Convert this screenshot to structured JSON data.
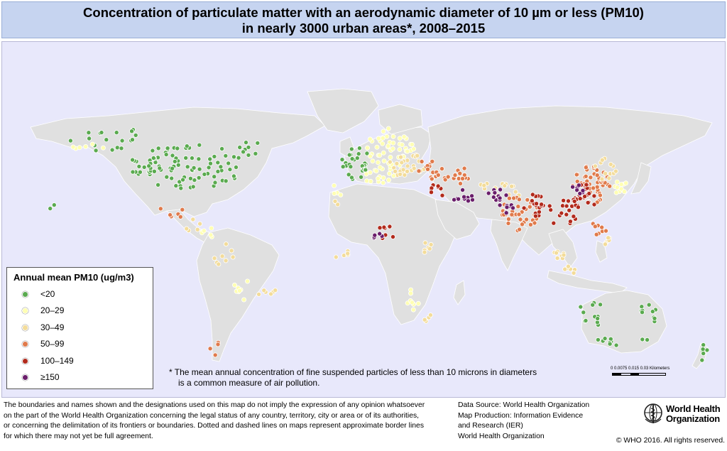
{
  "title": {
    "line1": "Concentration of particulate matter with an aerodynamic diameter of 10 µm or less (PM10)",
    "line2": "in nearly 3000 urban areas*, 2008–2015"
  },
  "legend": {
    "title": "Annual mean PM10 (ug/m3)",
    "classes": [
      {
        "label": "<20",
        "color": "#5aaa4f"
      },
      {
        "label": "20–29",
        "color": "#ffffb3"
      },
      {
        "label": "30–49",
        "color": "#f3dc9a"
      },
      {
        "label": "50–99",
        "color": "#e07a4b"
      },
      {
        "label": "100–149",
        "color": "#b22a1c"
      },
      {
        "label": "≥150",
        "color": "#6a1e6b"
      }
    ]
  },
  "footnote": {
    "line1": "*  The mean annual concentration of fine suspended particles of less than 10 microns in diameters",
    "line2": "is a common measure of air pollution."
  },
  "scale_bar": {
    "labels": "0   0.0075 0.015          0.03 Kilometers"
  },
  "disclaimer": {
    "line1": "The boundaries and names shown and the designations used on this map do not imply the expression of any opinion whatsoever",
    "line2": "on the part of the World Health Organization concerning the legal status of any country, territory, city or area or of its authorities,",
    "line3": "or concerning the delimitation of its frontiers or boundaries. Dotted and dashed lines on maps represent approximate border lines",
    "line4": "for which there may not yet be full agreement."
  },
  "source": {
    "line1": "Data Source: World Health Organization",
    "line2": "Map Production: Information Evidence",
    "line3": "and Research (IER)",
    "line4": "World Health Organization"
  },
  "logo": {
    "line1": "World Health",
    "line2": "Organization"
  },
  "copyright": "© WHO 2016. All rights reserved.",
  "colors": {
    "ocean": "#e8e8fb",
    "land": "#e0e0e0",
    "border": "#ffffff",
    "title_bg": "#c6d4f0"
  }
}
